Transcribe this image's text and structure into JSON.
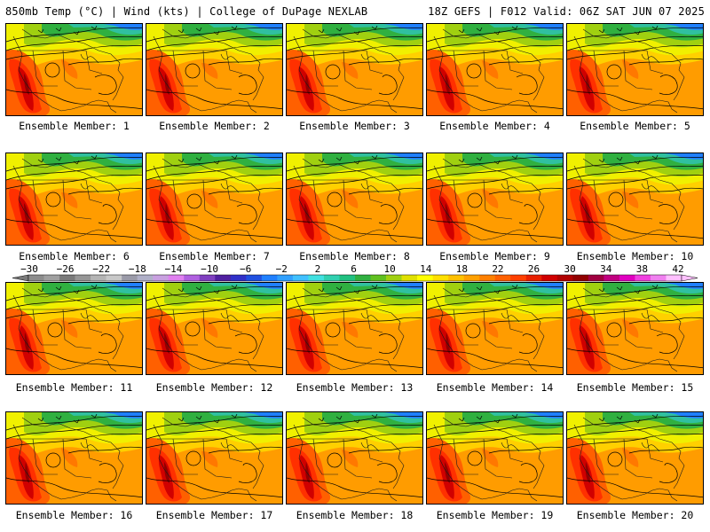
{
  "header": {
    "left": "850mb Temp (°C) | Wind (kts) | College of DuPage NEXLAB",
    "right": "18Z GEFS | F012 Valid: 06Z SAT JUN 07 2025"
  },
  "members": [
    "Ensemble Member: 1",
    "Ensemble Member: 2",
    "Ensemble Member: 3",
    "Ensemble Member: 4",
    "Ensemble Member: 5",
    "Ensemble Member: 6",
    "Ensemble Member: 7",
    "Ensemble Member: 8",
    "Ensemble Member: 9",
    "Ensemble Member: 10",
    "Ensemble Member: 11",
    "Ensemble Member: 12",
    "Ensemble Member: 13",
    "Ensemble Member: 14",
    "Ensemble Member: 15",
    "Ensemble Member: 16",
    "Ensemble Member: 17",
    "Ensemble Member: 18",
    "Ensemble Member: 19",
    "Ensemble Member: 20"
  ],
  "colorbar": {
    "ticks": [
      "−30",
      "−26",
      "−22",
      "−18",
      "−14",
      "−10",
      "−6",
      "−2",
      "2",
      "6",
      "10",
      "14",
      "18",
      "22",
      "26",
      "30",
      "34",
      "38",
      "42"
    ],
    "colors": [
      "#8c8c8c",
      "#a0a0a0",
      "#7a7a7a",
      "#969696",
      "#b4b4b4",
      "#c8c8c8",
      "#9a9aa8",
      "#b0b0c8",
      "#c8a0e0",
      "#e080f0",
      "#b060e0",
      "#8040c0",
      "#5020a0",
      "#3030c8",
      "#2050e0",
      "#2080ff",
      "#30a0ff",
      "#40c0ff",
      "#40e0e0",
      "#30d0b0",
      "#20c080",
      "#30b040",
      "#60c020",
      "#a0d010",
      "#e0e000",
      "#ffff00",
      "#ffe000",
      "#ffc000",
      "#ffa000",
      "#ff8000",
      "#ff6000",
      "#ff4000",
      "#e82000",
      "#d00000",
      "#b00000",
      "#900000",
      "#a00040",
      "#c00080",
      "#e000c0",
      "#f040e0",
      "#f080f0",
      "#ffc0ff"
    ]
  }
}
